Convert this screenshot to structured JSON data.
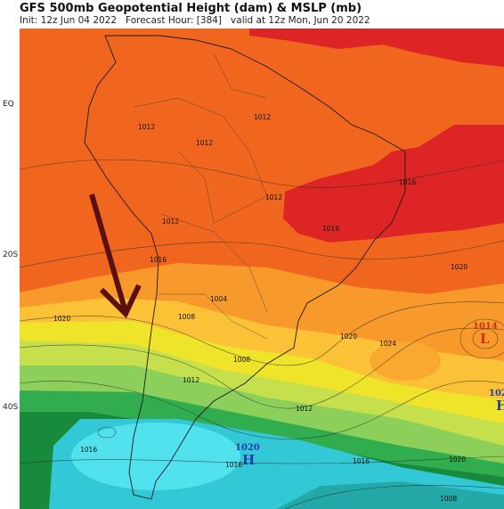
{
  "header": {
    "title": "GFS 500mb Geopotential Height (dam) & MSLP (mb)",
    "subtitle": "Init: 12z Jun 04 2022   Forecast Hour: [384]   valid at 12z Mon, Jun 20 2022"
  },
  "latitude_labels": [
    "EQ",
    "20S",
    "40S"
  ],
  "contour_labels": [
    "1012",
    "1012",
    "1012",
    "1012",
    "1012",
    "1016",
    "1016",
    "1016",
    "1004",
    "1008",
    "1008",
    "1012",
    "1020",
    "1020",
    "1020",
    "1024",
    "1016",
    "1016",
    "1016",
    "1020",
    "1008",
    "1012"
  ],
  "pressure_centers": [
    {
      "value": "1014",
      "symbol": "L"
    },
    {
      "value": "1020",
      "symbol": "H"
    },
    {
      "value": "102",
      "symbol": "H"
    }
  ]
}
